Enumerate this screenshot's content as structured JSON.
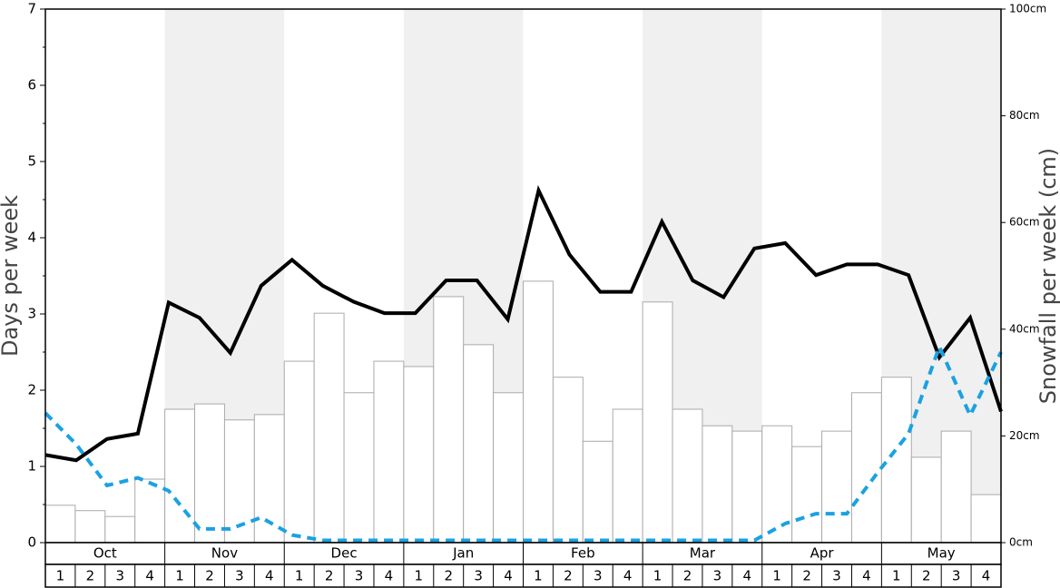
{
  "chart_data": {
    "type": "bar-line",
    "ylabel": "Days per week",
    "y2label": "Snowfall per week (cm)",
    "months": [
      "Oct",
      "Nov",
      "Dec",
      "Jan",
      "Feb",
      "Mar",
      "Apr",
      "May"
    ],
    "categories": [
      "1",
      "2",
      "3",
      "4",
      "1",
      "2",
      "3",
      "4",
      "1",
      "2",
      "3",
      "4",
      "1",
      "2",
      "3",
      "4",
      "1",
      "2",
      "3",
      "4",
      "1",
      "2",
      "3",
      "4",
      "1",
      "2",
      "3",
      "4",
      "1",
      "2",
      "3",
      "4"
    ],
    "ylim": [
      0,
      7
    ],
    "yticks": [
      0,
      1,
      2,
      3,
      4,
      5,
      6,
      7
    ],
    "minor_yticks": [
      0.5,
      1.5,
      2.5,
      3.5,
      4.5,
      5.5,
      6.5
    ],
    "y2lim": [
      0,
      100
    ],
    "y2ticks": [
      {
        "value": 0,
        "label": "0cm"
      },
      {
        "value": 20,
        "label": "20cm"
      },
      {
        "value": 40,
        "label": "40cm"
      },
      {
        "value": 60,
        "label": "60cm"
      },
      {
        "value": 80,
        "label": "80cm"
      },
      {
        "value": 100,
        "label": "100cm"
      }
    ],
    "series": [
      {
        "kind": "bar",
        "axis": "y2",
        "color": "#ffffff",
        "values": [
          7,
          6,
          4.9,
          11.9,
          25,
          26,
          23,
          24,
          34,
          43,
          28.1,
          34,
          33,
          46.1,
          37.1,
          28.1,
          49,
          31,
          19,
          25,
          45.1,
          25,
          21.9,
          20.9,
          21.9,
          18,
          20.9,
          28.1,
          31,
          16,
          20.9,
          9
        ]
      },
      {
        "kind": "line",
        "axis": "y",
        "color": "#000000",
        "values": [
          1.15,
          1.08,
          1.36,
          1.43,
          3.15,
          2.95,
          2.49,
          3.37,
          3.71,
          3.37,
          3.16,
          3.01,
          3.01,
          3.44,
          3.44,
          2.93,
          4.62,
          3.78,
          3.29,
          3.29,
          4.21,
          3.44,
          3.22,
          3.86,
          3.93,
          3.51,
          3.65,
          3.65,
          3.51,
          2.43,
          2.95,
          1.72
        ]
      },
      {
        "kind": "dashed-line",
        "axis": "y",
        "color": "#1ba1e2",
        "values": [
          1.7,
          1.29,
          0.75,
          0.85,
          0.68,
          0.18,
          0.18,
          0.33,
          0.1,
          0.03,
          0.03,
          0.03,
          0.03,
          0.03,
          0.03,
          0.03,
          0.03,
          0.03,
          0.03,
          0.03,
          0.03,
          0.03,
          0.03,
          0.03,
          0.25,
          0.38,
          0.38,
          0.92,
          1.43,
          2.57,
          1.67,
          2.5
        ]
      }
    ]
  }
}
